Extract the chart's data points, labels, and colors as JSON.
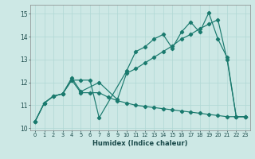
{
  "xlabel": "Humidex (Indice chaleur)",
  "xlim": [
    -0.5,
    23.5
  ],
  "ylim": [
    9.9,
    15.4
  ],
  "yticks": [
    10,
    11,
    12,
    13,
    14,
    15
  ],
  "xticks": [
    0,
    1,
    2,
    3,
    4,
    5,
    6,
    7,
    8,
    9,
    10,
    11,
    12,
    13,
    14,
    15,
    16,
    17,
    18,
    19,
    20,
    21,
    22,
    23
  ],
  "bg_color": "#cde8e5",
  "line_color": "#1a7a6e",
  "grid_color": "#b0d8d4",
  "series1_x": [
    0,
    1,
    2,
    3,
    4,
    5,
    6,
    7,
    10,
    11,
    12,
    13,
    14,
    15,
    16,
    17,
    18,
    19,
    20,
    21,
    22,
    23
  ],
  "series1_y": [
    10.3,
    11.1,
    11.4,
    11.5,
    12.1,
    12.1,
    12.1,
    10.45,
    12.5,
    13.35,
    13.55,
    13.9,
    14.1,
    13.5,
    14.2,
    14.65,
    14.2,
    15.05,
    13.9,
    13.1,
    10.5,
    10.5
  ],
  "series2_x": [
    0,
    1,
    2,
    3,
    4,
    5,
    7,
    9,
    10,
    11,
    12,
    13,
    14,
    15,
    16,
    17,
    18,
    19,
    20,
    21,
    22,
    23
  ],
  "series2_y": [
    10.3,
    11.1,
    11.4,
    11.5,
    12.2,
    11.6,
    12.0,
    11.25,
    12.4,
    12.6,
    12.85,
    13.1,
    13.35,
    13.6,
    13.9,
    14.1,
    14.35,
    14.55,
    14.75,
    13.0,
    10.5,
    10.5
  ],
  "series3_x": [
    0,
    1,
    2,
    3,
    4,
    5,
    6,
    7,
    8,
    9,
    10,
    11,
    12,
    13,
    14,
    15,
    16,
    17,
    18,
    19,
    20,
    21,
    22,
    23
  ],
  "series3_y": [
    10.3,
    11.1,
    11.4,
    11.5,
    12.1,
    11.55,
    11.55,
    11.55,
    11.35,
    11.2,
    11.1,
    11.0,
    10.95,
    10.9,
    10.85,
    10.8,
    10.75,
    10.7,
    10.65,
    10.6,
    10.55,
    10.5,
    10.5,
    10.5
  ]
}
